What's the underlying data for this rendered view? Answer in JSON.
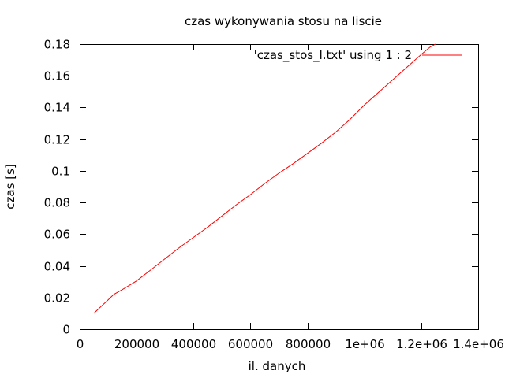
{
  "chart_data": {
    "type": "line",
    "title": "czas wykonywania stosu na liscie",
    "xlabel": "il. danych",
    "ylabel": "czas [s]",
    "xlim": [
      0,
      1400000
    ],
    "ylim": [
      0,
      0.18
    ],
    "x_ticks": [
      0,
      200000,
      400000,
      600000,
      800000,
      1000000,
      1200000,
      1400000
    ],
    "x_tick_labels": [
      "0",
      "200000",
      "400000",
      "600000",
      "800000",
      "1e+06",
      "1.2e+06",
      "1.4e+06"
    ],
    "y_ticks": [
      0,
      0.02,
      0.04,
      0.06,
      0.08,
      0.1,
      0.12,
      0.14,
      0.16,
      0.18
    ],
    "y_tick_labels": [
      "0",
      "0.02",
      "0.04",
      "0.06",
      "0.08",
      "0.1",
      "0.12",
      "0.14",
      "0.16",
      "0.18"
    ],
    "grid": false,
    "legend_position": "top-right",
    "series": [
      {
        "name": "'czas_stos_l.txt' using 1 : 2",
        "color": "#ff0000",
        "x": [
          50000,
          70000,
          100000,
          120000,
          150000,
          200000,
          250000,
          300000,
          350000,
          400000,
          450000,
          500000,
          550000,
          600000,
          650000,
          700000,
          750000,
          800000,
          850000,
          900000,
          950000,
          1000000,
          1050000,
          1100000,
          1150000,
          1200000,
          1230000,
          1250000
        ],
        "y": [
          0.01,
          0.0135,
          0.0185,
          0.022,
          0.025,
          0.0305,
          0.0375,
          0.0445,
          0.0515,
          0.058,
          0.0645,
          0.0715,
          0.0785,
          0.085,
          0.092,
          0.0985,
          0.1045,
          0.111,
          0.1175,
          0.1245,
          0.1325,
          0.1415,
          0.1495,
          0.1575,
          0.1655,
          0.1735,
          0.178,
          0.18
        ]
      }
    ]
  }
}
